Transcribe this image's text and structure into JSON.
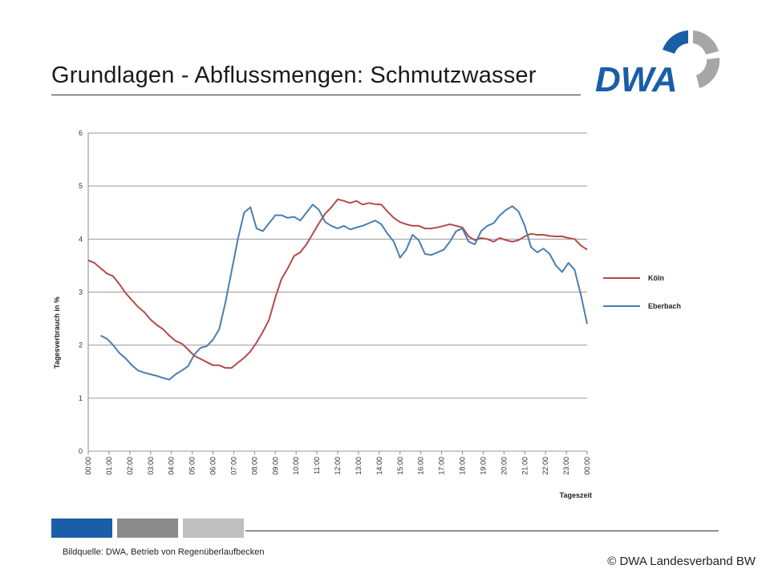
{
  "title": "Grundlagen - Abflussmengen: Schmutzwasser",
  "logo": {
    "text": "DWA",
    "color_blue": "#1a5ea8",
    "color_gray": "#a6a6a6"
  },
  "footer": {
    "source": "Bildquelle: DWA, Betrieb von Regenüberlaufbecken",
    "copyright": "© DWA Landesverband BW",
    "bar_colors": [
      "#1a5ea8",
      "#8c8c8c",
      "#bfbfbf"
    ]
  },
  "chart_data": {
    "type": "line",
    "xlabel": "Tageszeit",
    "ylabel": "Tagesverbrauch in %",
    "ylim": [
      0,
      6
    ],
    "yticks": [
      "0",
      "1",
      "2",
      "3",
      "4",
      "5",
      "6"
    ],
    "xticks": [
      "00:00",
      "01:00",
      "02:00",
      "03:00",
      "04:00",
      "05:00",
      "06:00",
      "07:00",
      "08:00",
      "09:00",
      "10:00",
      "11:00",
      "12:00",
      "13:00",
      "14:00",
      "15:00",
      "16:00",
      "17:00",
      "18:00",
      "19:00",
      "20:00",
      "21:00",
      "22:00",
      "23:00",
      "00:00"
    ],
    "xlim": [
      0,
      24
    ],
    "grid": "horizontal",
    "legend_position": "right",
    "series": [
      {
        "name": "Köln",
        "color": "#b54a47",
        "x": [
          0,
          0.3,
          0.6,
          0.9,
          1.2,
          1.5,
          1.8,
          2.1,
          2.4,
          2.7,
          3.0,
          3.3,
          3.6,
          3.9,
          4.2,
          4.5,
          4.8,
          5.1,
          5.4,
          5.7,
          6.0,
          6.3,
          6.6,
          6.9,
          7.2,
          7.5,
          7.8,
          8.1,
          8.4,
          8.7,
          9.0,
          9.3,
          9.6,
          9.9,
          10.2,
          10.5,
          10.8,
          11.1,
          11.4,
          11.7,
          12.0,
          12.3,
          12.6,
          12.9,
          13.2,
          13.5,
          13.8,
          14.1,
          14.4,
          14.7,
          15.0,
          15.3,
          15.6,
          15.9,
          16.2,
          16.5,
          16.8,
          17.1,
          17.4,
          17.7,
          18.0,
          18.3,
          18.6,
          18.9,
          19.2,
          19.5,
          19.8,
          20.1,
          20.4,
          20.7,
          21.0,
          21.3,
          21.6,
          21.9,
          22.2,
          22.5,
          22.8,
          23.1,
          23.4,
          23.7,
          24.0
        ],
        "values": [
          3.6,
          3.55,
          3.45,
          3.35,
          3.3,
          3.15,
          2.98,
          2.85,
          2.72,
          2.62,
          2.48,
          2.38,
          2.3,
          2.18,
          2.08,
          2.03,
          1.92,
          1.8,
          1.74,
          1.68,
          1.62,
          1.62,
          1.57,
          1.57,
          1.67,
          1.76,
          1.88,
          2.05,
          2.25,
          2.48,
          2.9,
          3.25,
          3.45,
          3.68,
          3.75,
          3.9,
          4.1,
          4.3,
          4.48,
          4.6,
          4.75,
          4.72,
          4.68,
          4.72,
          4.65,
          4.68,
          4.66,
          4.65,
          4.52,
          4.4,
          4.32,
          4.28,
          4.25,
          4.25,
          4.2,
          4.2,
          4.22,
          4.25,
          4.28,
          4.25,
          4.22,
          4.05,
          3.98,
          4.02,
          4.0,
          3.95,
          4.02,
          3.98,
          3.95,
          3.98,
          4.05,
          4.1,
          4.08,
          4.08,
          4.06,
          4.05,
          4.05,
          4.02,
          4.0,
          3.88,
          3.8
        ]
      },
      {
        "name": "Eberbach",
        "color": "#4a7eb0",
        "x": [
          0.6,
          0.9,
          1.2,
          1.5,
          1.8,
          2.1,
          2.4,
          2.7,
          3.0,
          3.3,
          3.6,
          3.9,
          4.2,
          4.5,
          4.8,
          5.1,
          5.4,
          5.7,
          6.0,
          6.3,
          6.6,
          6.9,
          7.2,
          7.5,
          7.8,
          8.1,
          8.4,
          8.7,
          9.0,
          9.3,
          9.6,
          9.9,
          10.2,
          10.5,
          10.8,
          11.1,
          11.4,
          11.7,
          12.0,
          12.3,
          12.6,
          12.9,
          13.2,
          13.5,
          13.8,
          14.1,
          14.4,
          14.7,
          15.0,
          15.3,
          15.6,
          15.9,
          16.2,
          16.5,
          16.8,
          17.1,
          17.4,
          17.7,
          18.0,
          18.3,
          18.6,
          18.9,
          19.2,
          19.5,
          19.8,
          20.1,
          20.4,
          20.7,
          21.0,
          21.3,
          21.6,
          21.9,
          22.2,
          22.5,
          22.8,
          23.1,
          23.4,
          23.7,
          24.0
        ],
        "values": [
          2.18,
          2.12,
          2.0,
          1.85,
          1.75,
          1.62,
          1.52,
          1.48,
          1.45,
          1.42,
          1.38,
          1.35,
          1.45,
          1.52,
          1.6,
          1.82,
          1.95,
          1.98,
          2.1,
          2.3,
          2.8,
          3.4,
          4.0,
          4.5,
          4.6,
          4.2,
          4.15,
          4.3,
          4.45,
          4.45,
          4.4,
          4.42,
          4.35,
          4.5,
          4.65,
          4.55,
          4.32,
          4.25,
          4.2,
          4.25,
          4.18,
          4.22,
          4.25,
          4.3,
          4.35,
          4.28,
          4.1,
          3.95,
          3.65,
          3.8,
          4.08,
          3.98,
          3.72,
          3.7,
          3.75,
          3.8,
          3.95,
          4.15,
          4.2,
          3.95,
          3.9,
          4.15,
          4.25,
          4.3,
          4.45,
          4.55,
          4.62,
          4.52,
          4.25,
          3.85,
          3.75,
          3.82,
          3.72,
          3.5,
          3.38,
          3.55,
          3.42,
          2.95,
          2.4
        ]
      }
    ]
  }
}
